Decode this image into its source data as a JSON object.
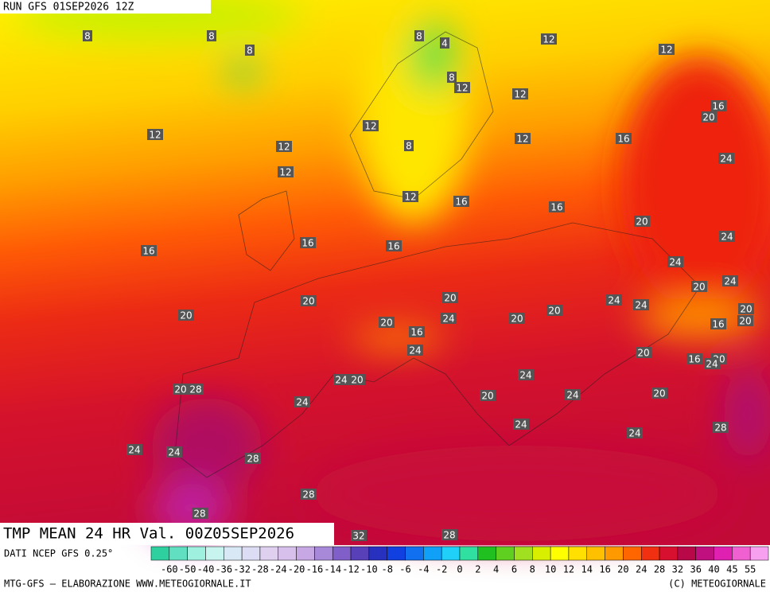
{
  "header": {
    "run": "RUN GFS 01SEP2026 12Z"
  },
  "map": {
    "title": "TMP MEAN 24 HR Val. 00Z05SEP2026",
    "contour_labels": [
      "8",
      "8",
      "8",
      "8",
      "4",
      "8",
      "12",
      "12",
      "12",
      "12",
      "16",
      "20",
      "12",
      "12",
      "12",
      "8",
      "12",
      "16",
      "24",
      "12",
      "12",
      "16",
      "16",
      "20",
      "24",
      "16",
      "16",
      "16",
      "24",
      "20",
      "24",
      "20",
      "20",
      "24",
      "24",
      "20",
      "20",
      "20",
      "20",
      "24",
      "20",
      "16",
      "20",
      "16",
      "24",
      "20",
      "16",
      "20",
      "24",
      "24",
      "20",
      "24",
      "20",
      "28",
      "24",
      "20",
      "20",
      "24",
      "24",
      "28",
      "24",
      "24",
      "24",
      "28",
      "28",
      "28",
      "32",
      "28"
    ]
  },
  "footer": {
    "source": "DATI NCEP GFS 0.25°",
    "credit": "MTG-GFS — ELABORAZIONE WWW.METEOGIORNALE.IT",
    "copyright": "(C) METEOGIORNALE"
  },
  "colorbar": {
    "ticks": [
      -60,
      -50,
      -40,
      -36,
      -32,
      -28,
      -24,
      -20,
      -16,
      -14,
      -12,
      -10,
      -8,
      -6,
      -4,
      -2,
      0,
      2,
      4,
      6,
      8,
      10,
      12,
      14,
      16,
      20,
      24,
      28,
      32,
      36,
      40,
      45,
      55
    ],
    "colors": [
      "#2fd0a0",
      "#60e0c0",
      "#a0f0e0",
      "#c8f4f0",
      "#d8e8f4",
      "#dcdcf4",
      "#e0d0f0",
      "#d8c0ec",
      "#c8a8e4",
      "#a888d8",
      "#8060c8",
      "#5840b8",
      "#2830c0",
      "#1040e0",
      "#1070f0",
      "#10a0f8",
      "#20d0f8",
      "#30e0a0",
      "#20c020",
      "#60d020",
      "#a0e020",
      "#d8f000",
      "#ffff00",
      "#ffe000",
      "#ffc000",
      "#ff9900",
      "#ff6600",
      "#f03010",
      "#d81030",
      "#b80848",
      "#c01080",
      "#e020b0",
      "#f060d0",
      "#f8a0f0"
    ]
  }
}
